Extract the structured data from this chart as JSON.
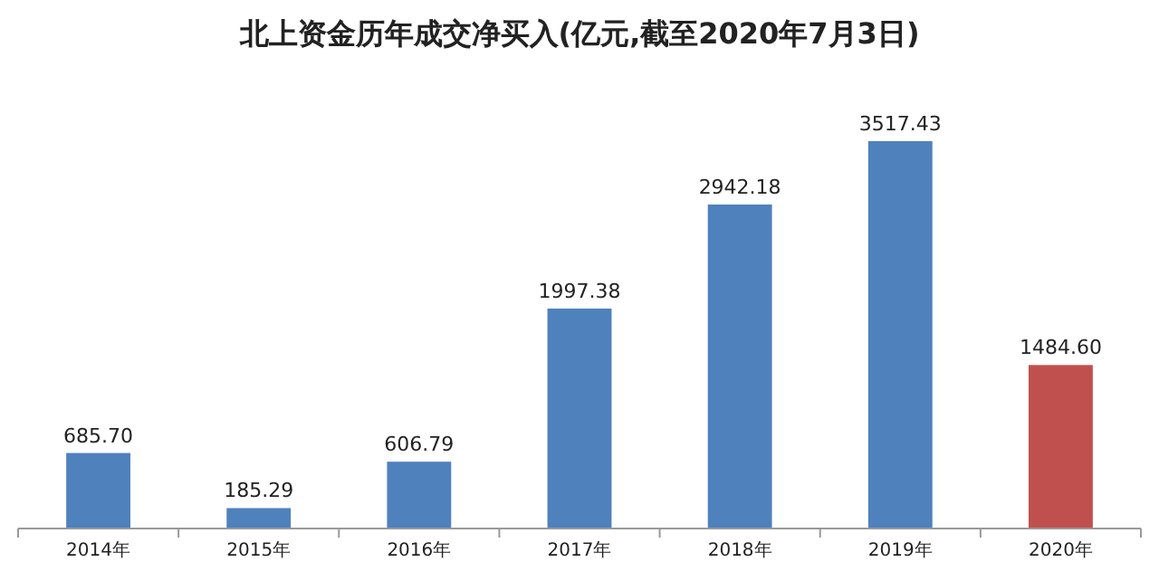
{
  "chart_data": {
    "type": "bar",
    "title": "北上资金历年成交净买入(亿元,截至2020年7月3日)",
    "categories": [
      "2014年",
      "2015年",
      "2016年",
      "2017年",
      "2018年",
      "2019年",
      "2020年"
    ],
    "values": [
      685.7,
      185.29,
      606.79,
      1997.38,
      2942.18,
      3517.43,
      1484.6
    ],
    "value_labels": [
      "685.70",
      "185.29",
      "606.79",
      "1997.38",
      "2942.18",
      "3517.43",
      "1484.60"
    ],
    "colors": [
      "#4f81bd",
      "#4f81bd",
      "#4f81bd",
      "#4f81bd",
      "#4f81bd",
      "#4f81bd",
      "#c0504d"
    ],
    "grid": false
  }
}
